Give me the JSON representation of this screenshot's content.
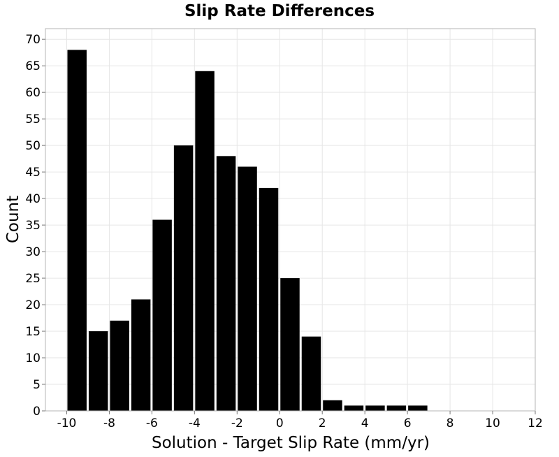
{
  "chart_data": {
    "type": "bar",
    "title": "Slip Rate Differences",
    "xlabel": "Solution - Target Slip Rate (mm/yr)",
    "ylabel": "Count",
    "xlim": [
      -11,
      12
    ],
    "ylim": [
      0,
      72
    ],
    "xticks": [
      -10,
      -8,
      -6,
      -4,
      -2,
      0,
      2,
      4,
      6,
      8,
      10,
      12
    ],
    "yticks": [
      0,
      5,
      10,
      15,
      20,
      25,
      30,
      35,
      40,
      45,
      50,
      55,
      60,
      65,
      70
    ],
    "bin_width": 1,
    "bins": [
      {
        "x": -10,
        "count": 68
      },
      {
        "x": -9,
        "count": 15
      },
      {
        "x": -8,
        "count": 17
      },
      {
        "x": -7,
        "count": 21
      },
      {
        "x": -6,
        "count": 36
      },
      {
        "x": -5,
        "count": 50
      },
      {
        "x": -4,
        "count": 64
      },
      {
        "x": -3,
        "count": 48
      },
      {
        "x": -2,
        "count": 46
      },
      {
        "x": -1,
        "count": 42
      },
      {
        "x": 0,
        "count": 25
      },
      {
        "x": 1,
        "count": 14
      },
      {
        "x": 2,
        "count": 2
      },
      {
        "x": 3,
        "count": 1
      },
      {
        "x": 4,
        "count": 1
      },
      {
        "x": 5,
        "count": 1
      },
      {
        "x": 6,
        "count": 1
      }
    ],
    "bar_color": "#000000",
    "grid": true,
    "legend": "none"
  }
}
